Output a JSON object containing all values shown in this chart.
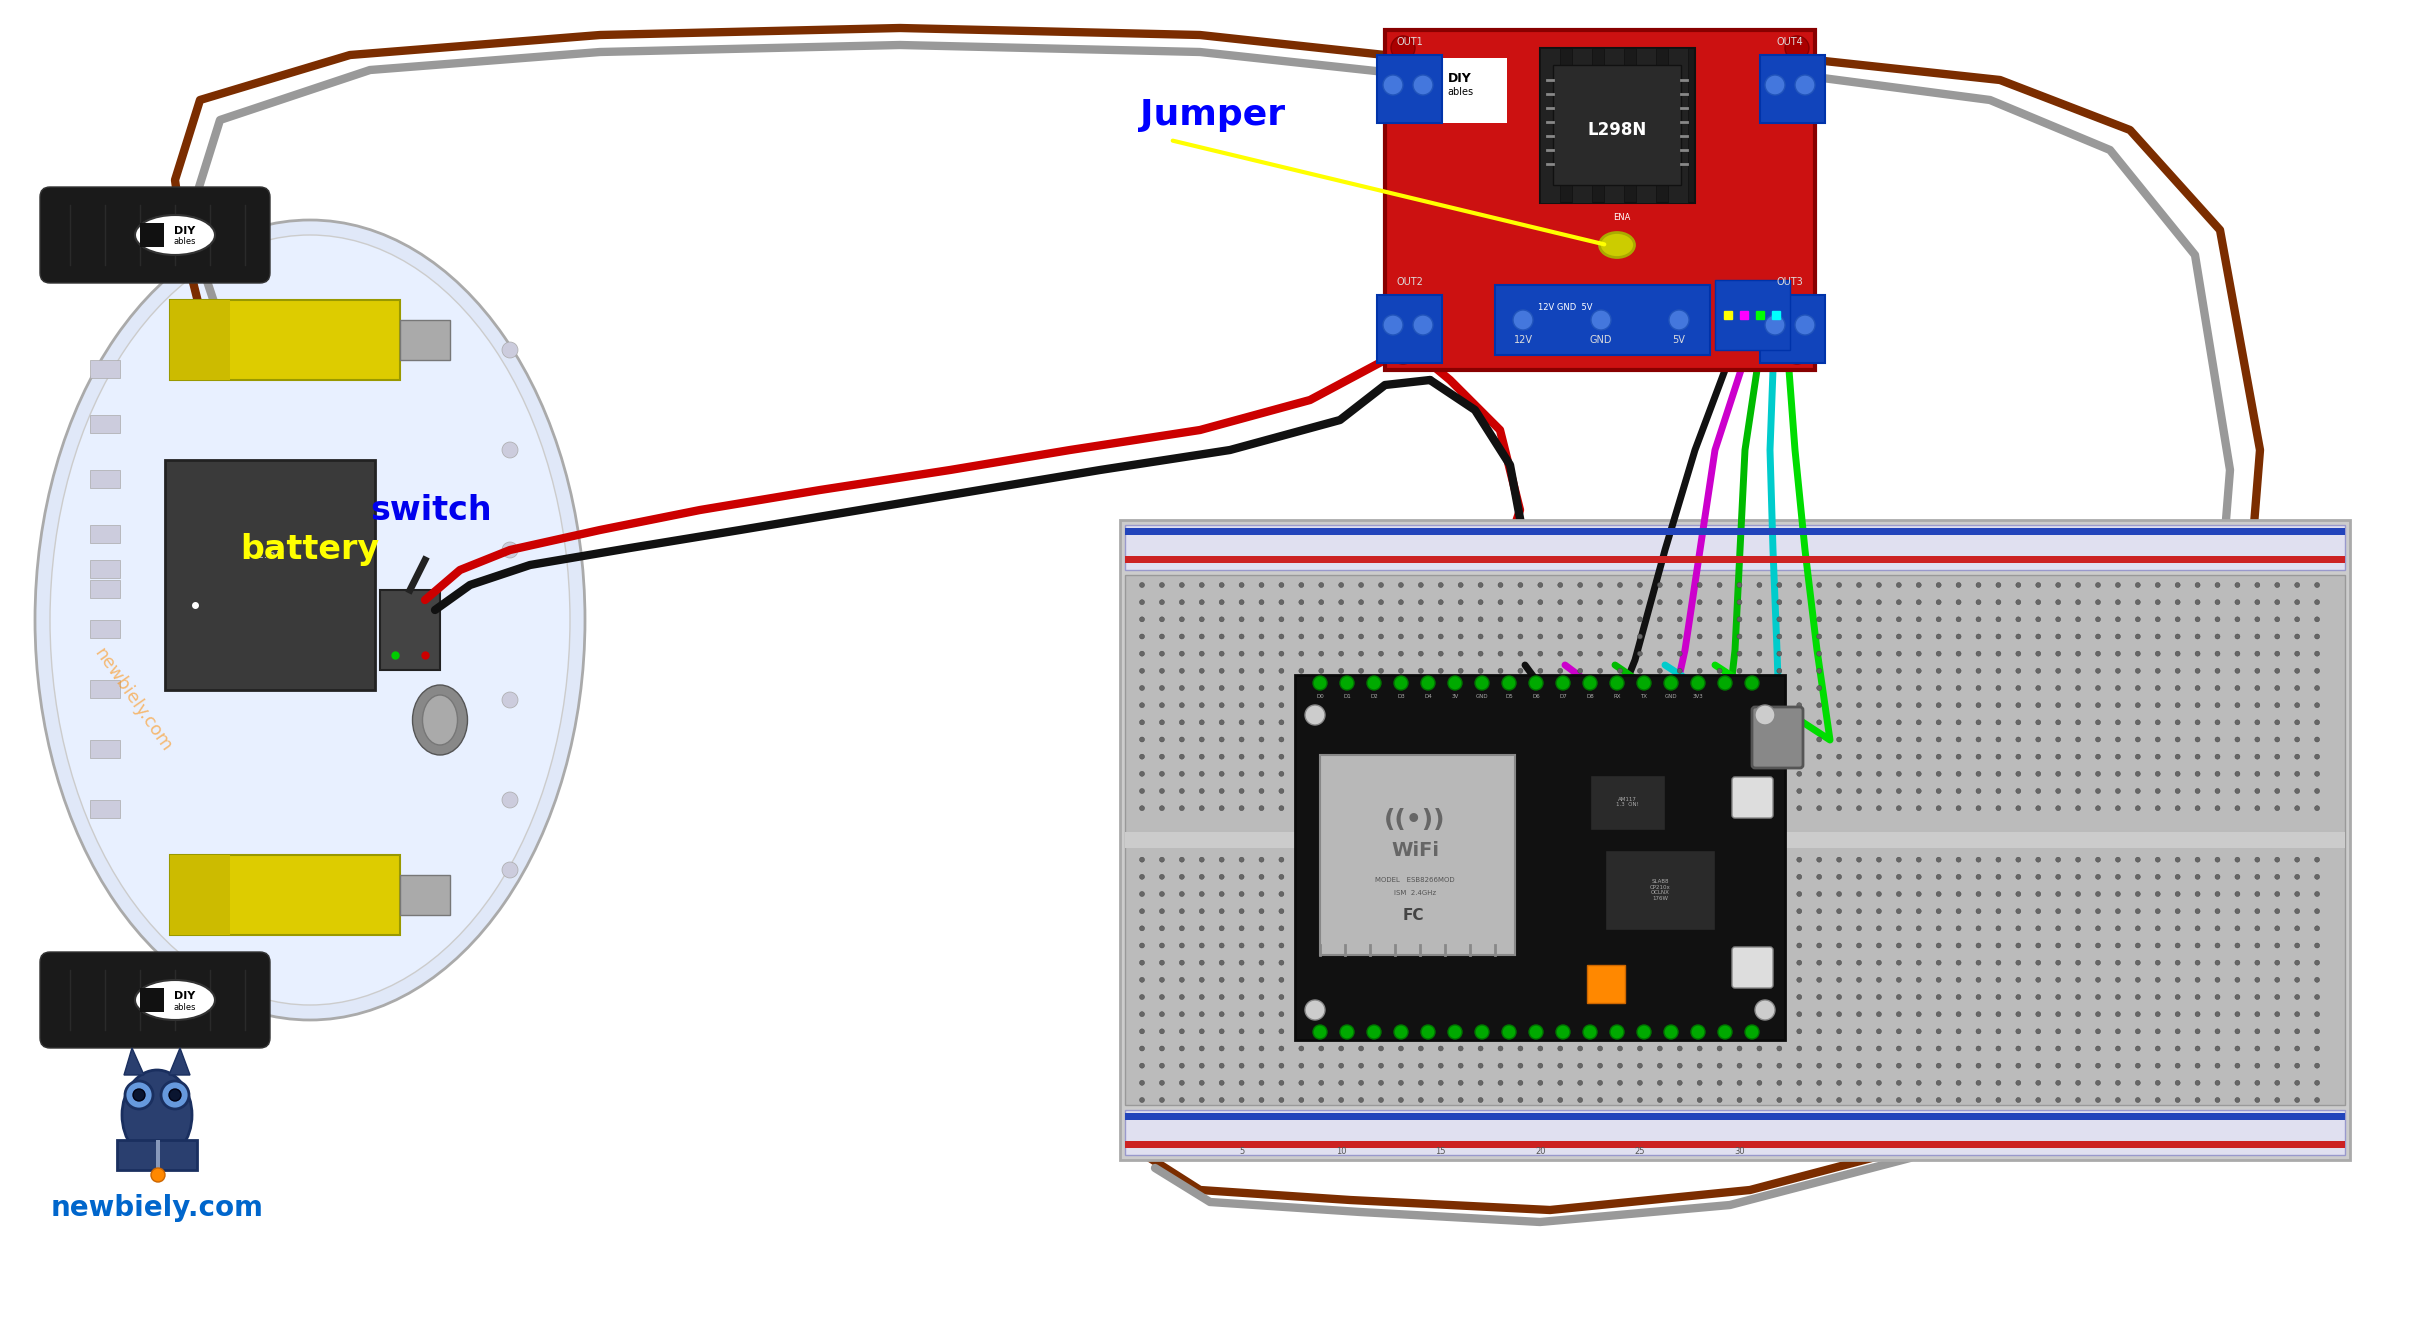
{
  "background_color": "#ffffff",
  "figsize": [
    24.1,
    13.19
  ],
  "dpi": 100,
  "wire_colors": {
    "brown": "#7B2D00",
    "gray": "#999999",
    "red": "#CC0000",
    "black": "#111111",
    "green": "#00BB00",
    "green2": "#00DD00",
    "cyan": "#00CCCC",
    "magenta": "#CC00CC",
    "yellow": "#FFFF00"
  },
  "label_jumper": "Jumper",
  "label_battery": "battery",
  "label_switch": "switch",
  "label_newbiely": "newbiely.com",
  "color_blue_label": "#0000FF",
  "color_yellow_label": "#FFFF00",
  "color_orange_wm": "#FF8C00",
  "color_cyan_label": "#00AAFF"
}
